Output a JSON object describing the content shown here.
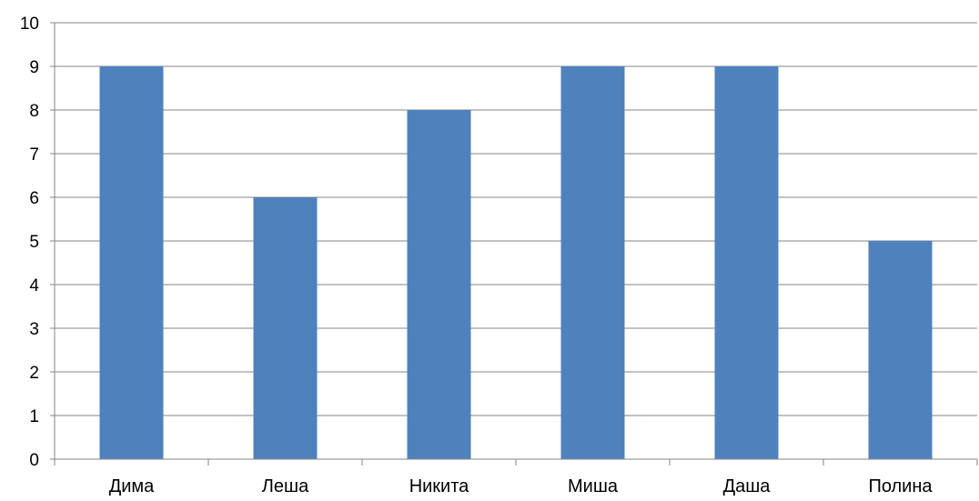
{
  "chart_data": {
    "type": "bar",
    "categories": [
      "Дима",
      "Леша",
      "Никита",
      "Миша",
      "Даша",
      "Полина"
    ],
    "values": [
      9,
      6,
      8,
      9,
      9,
      5
    ],
    "ylim": [
      0,
      10
    ],
    "yticks": [
      "0",
      "1",
      "2",
      "3",
      "4",
      "5",
      "6",
      "7",
      "8",
      "9",
      "10"
    ],
    "grid": true,
    "legend": "none",
    "bar_color": "#4F81BD",
    "grid_color": "#868686",
    "axis_color": "#868686"
  }
}
